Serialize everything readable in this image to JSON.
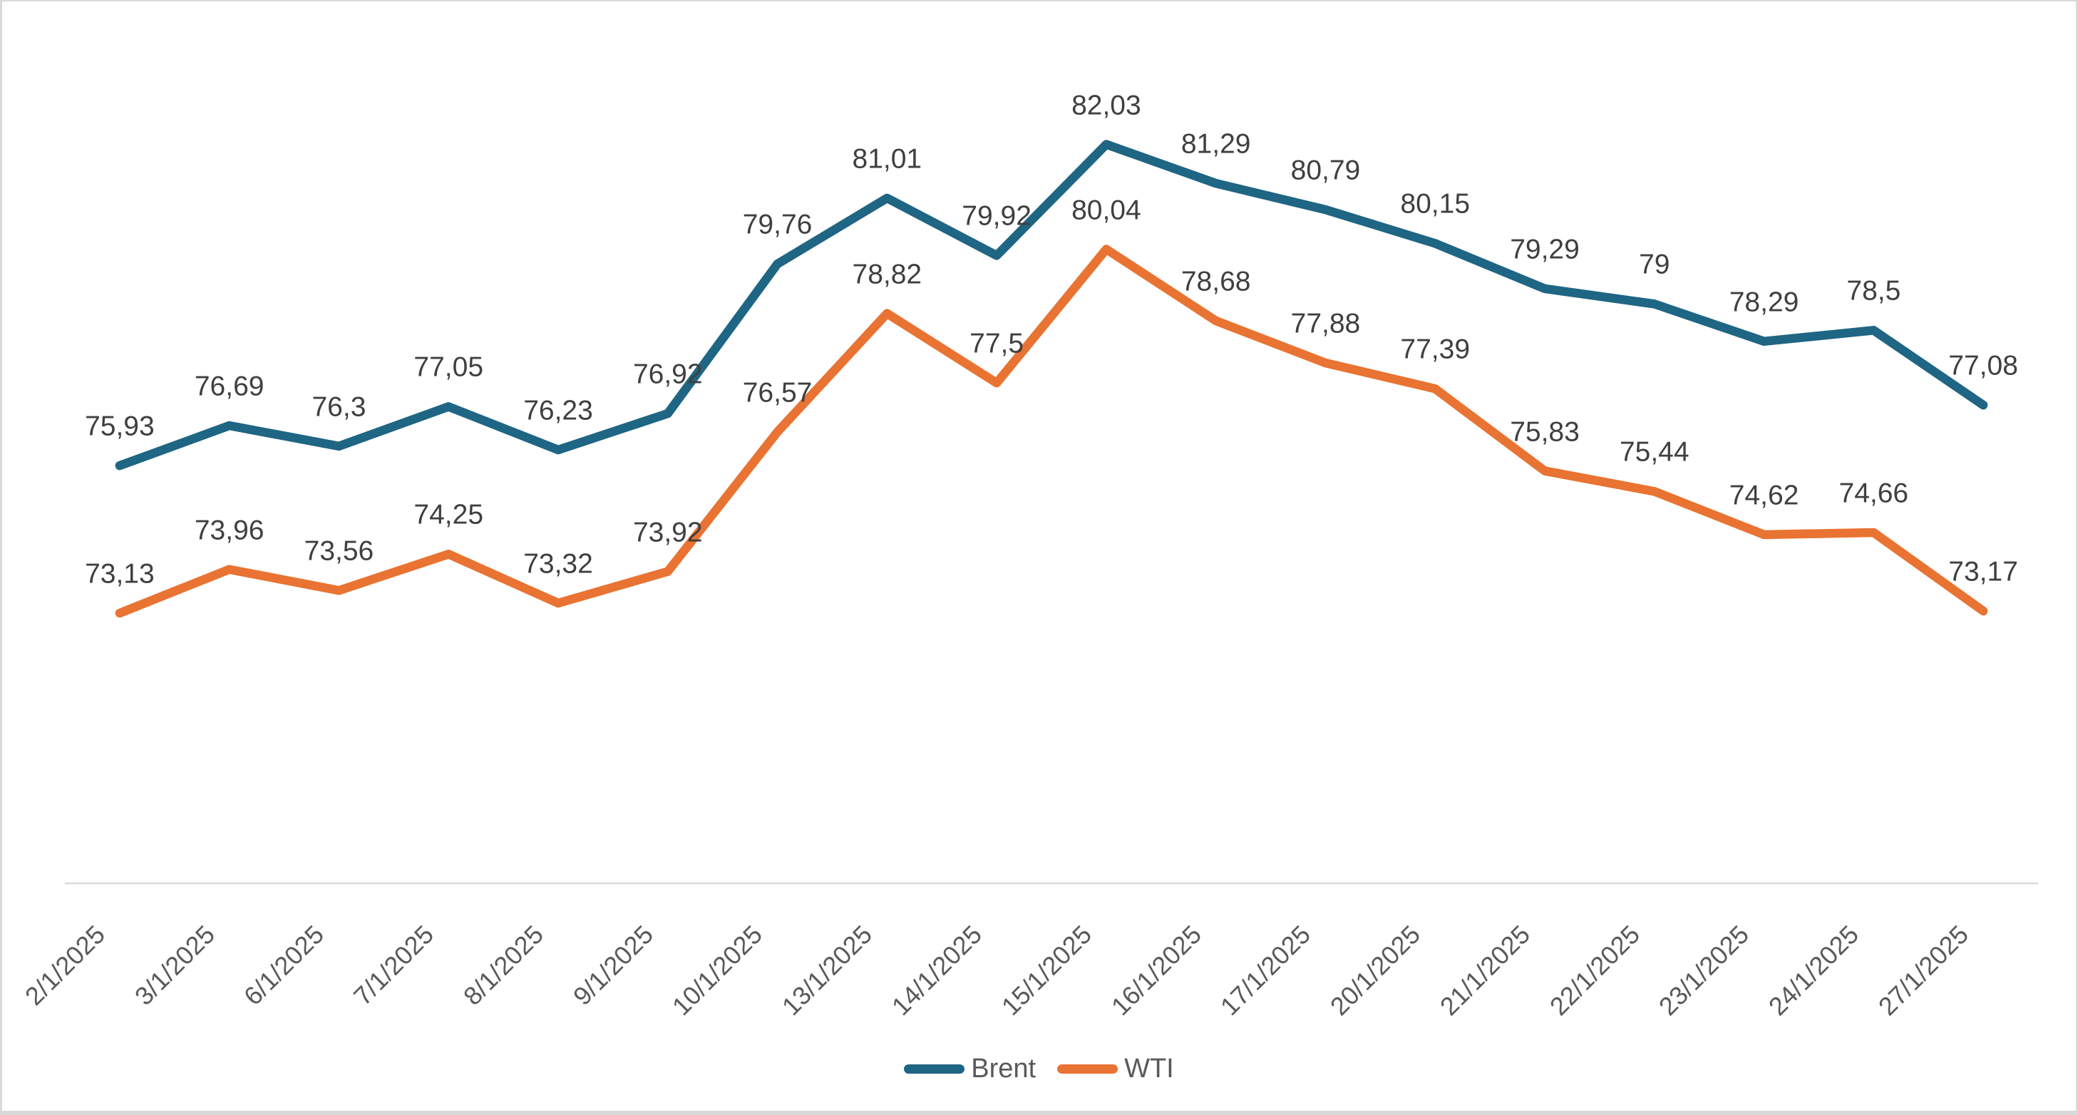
{
  "chart_data": {
    "type": "line",
    "title": "",
    "xlabel": "",
    "ylabel": "",
    "grid": false,
    "legend_position": "bottom",
    "ylim": [
      68,
      84
    ],
    "categories": [
      "2/1/2025",
      "3/1/2025",
      "6/1/2025",
      "7/1/2025",
      "8/1/2025",
      "9/1/2025",
      "10/1/2025",
      "13/1/2025",
      "14/1/2025",
      "15/1/2025",
      "16/1/2025",
      "17/1/2025",
      "20/1/2025",
      "21/1/2025",
      "22/1/2025",
      "23/1/2025",
      "24/1/2025",
      "27/1/2025"
    ],
    "series": [
      {
        "name": "Brent",
        "color": "#1F6584",
        "values": [
          75.93,
          76.69,
          76.3,
          77.05,
          76.23,
          76.92,
          79.76,
          81.01,
          79.92,
          82.03,
          81.29,
          80.79,
          80.15,
          79.29,
          79,
          78.29,
          78.5,
          77.08
        ],
        "labels": [
          "75,93",
          "76,69",
          "76,3",
          "77,05",
          "76,23",
          "76,92",
          "79,76",
          "81,01",
          "79,92",
          "82,03",
          "81,29",
          "80,79",
          "80,15",
          "79,29",
          "79",
          "78,29",
          "78,5",
          "77,08"
        ]
      },
      {
        "name": "WTI",
        "color": "#E97332",
        "values": [
          73.13,
          73.96,
          73.56,
          74.25,
          73.32,
          73.92,
          76.57,
          78.82,
          77.5,
          80.04,
          78.68,
          77.88,
          77.39,
          75.83,
          75.44,
          74.62,
          74.66,
          73.17
        ],
        "labels": [
          "73,13",
          "73,96",
          "73,56",
          "74,25",
          "73,32",
          "73,92",
          "76,57",
          "78,82",
          "77,5",
          "80,04",
          "78,68",
          "77,88",
          "77,39",
          "75,83",
          "75,44",
          "74,62",
          "74,66",
          "73,17"
        ]
      }
    ],
    "axis_line_color": "#D9D9D9",
    "data_label_color": "#3F3F3F",
    "axis_label_color": "#595959"
  },
  "legend": {
    "brent_label": "Brent",
    "wti_label": "WTI"
  }
}
